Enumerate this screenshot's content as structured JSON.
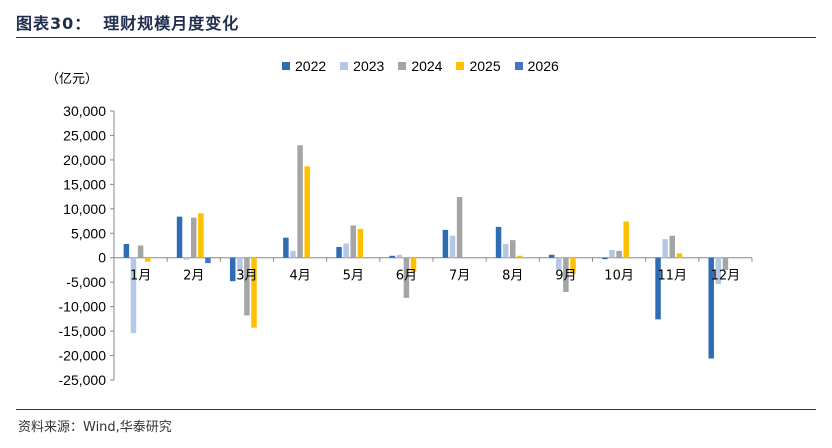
{
  "figure": {
    "label": "图表30：",
    "title": "理财规模月度变化",
    "unit": "（亿元）",
    "source": "资料来源：Wind,华泰研究"
  },
  "chart_data": {
    "type": "bar",
    "ylim": [
      -25000,
      30000
    ],
    "yticks": [
      30000,
      25000,
      20000,
      15000,
      10000,
      5000,
      0,
      -5000,
      -10000,
      -15000,
      -20000,
      -25000
    ],
    "ytick_labels": [
      "30,000",
      "25,000",
      "20,000",
      "15,000",
      "10,000",
      "5,000",
      "0",
      "-5,000",
      "-10,000",
      "-15,000",
      "-20,000",
      "-25,000"
    ],
    "categories": [
      "1月",
      "2月",
      "3月",
      "4月",
      "5月",
      "6月",
      "7月",
      "8月",
      "9月",
      "10月",
      "11月",
      "12月"
    ],
    "legend_position": "top",
    "grid": false,
    "series": [
      {
        "name": "2022",
        "color": "#2e6db4",
        "values": [
          2800,
          8400,
          -4800,
          4100,
          2200,
          400,
          5700,
          6300,
          600,
          -300,
          -12600,
          -20600
        ]
      },
      {
        "name": "2023",
        "color": "#b4c7e7",
        "values": [
          -15400,
          -400,
          -2400,
          1400,
          2900,
          600,
          4500,
          2800,
          -2500,
          1600,
          3800,
          -5400
        ]
      },
      {
        "name": "2024",
        "color": "#a5a5a5",
        "values": [
          2500,
          8200,
          -11800,
          23000,
          6600,
          -8200,
          12400,
          3600,
          -7000,
          1400,
          4500,
          -2500
        ]
      },
      {
        "name": "2025",
        "color": "#ffc000",
        "values": [
          -800,
          9100,
          -14300,
          18700,
          5900,
          -2900,
          0,
          400,
          -3300,
          7400,
          900,
          0
        ]
      },
      {
        "name": "2026",
        "color": "#4472c4",
        "values": [
          0,
          -1100,
          0,
          0,
          0,
          0,
          0,
          0,
          0,
          0,
          0,
          0
        ]
      }
    ]
  }
}
